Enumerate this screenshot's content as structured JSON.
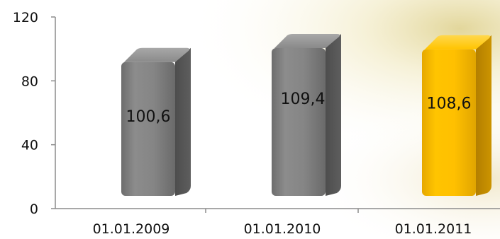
{
  "chart_data": {
    "type": "bar",
    "title": "",
    "xlabel": "",
    "ylabel": "",
    "categories": [
      "01.01.2009",
      "01.01.2010",
      "01.01.2011"
    ],
    "values": [
      100.6,
      109.4,
      108.6
    ],
    "value_labels": [
      "100,6",
      "109,4",
      "108,6"
    ],
    "ylim": [
      0,
      120
    ],
    "yticks": [
      0,
      40,
      80,
      120
    ],
    "grid": false,
    "legend": "none",
    "bar_colors": [
      "#7f7f7f",
      "#7f7f7f",
      "#ffc000"
    ]
  }
}
